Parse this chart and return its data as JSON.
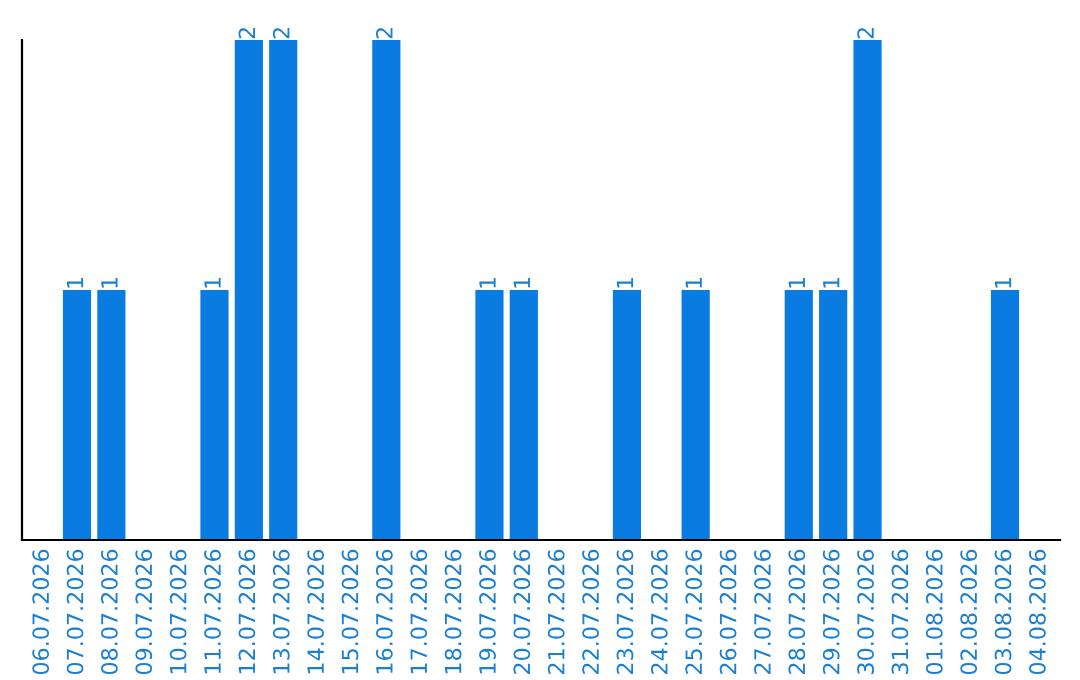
{
  "chart_data": {
    "type": "bar",
    "categories": [
      "06.07.2026",
      "07.07.2026",
      "08.07.2026",
      "09.07.2026",
      "10.07.2026",
      "11.07.2026",
      "12.07.2026",
      "13.07.2026",
      "14.07.2026",
      "15.07.2026",
      "16.07.2026",
      "17.07.2026",
      "18.07.2026",
      "19.07.2026",
      "20.07.2026",
      "21.07.2026",
      "22.07.2026",
      "23.07.2026",
      "24.07.2026",
      "25.07.2026",
      "26.07.2026",
      "27.07.2026",
      "28.07.2026",
      "29.07.2026",
      "30.07.2026",
      "31.07.2026",
      "01.08.2026",
      "02.08.2026",
      "03.08.2026",
      "04.08.2026"
    ],
    "values": [
      0,
      1,
      1,
      0,
      0,
      1,
      2,
      2,
      0,
      0,
      2,
      0,
      0,
      1,
      1,
      0,
      0,
      1,
      0,
      1,
      0,
      0,
      1,
      1,
      2,
      0,
      0,
      0,
      1,
      0
    ],
    "color": "#0a7be0",
    "value_labels": [
      null,
      "1",
      "1",
      null,
      null,
      "1",
      "2",
      "2",
      null,
      null,
      "2",
      null,
      null,
      "1",
      "1",
      null,
      null,
      "1",
      null,
      "1",
      null,
      null,
      "1",
      "1",
      "2",
      null,
      null,
      null,
      "1",
      null
    ],
    "ylim": [
      0,
      2
    ],
    "tick_labels": "x",
    "grid": false,
    "legend": false
  }
}
